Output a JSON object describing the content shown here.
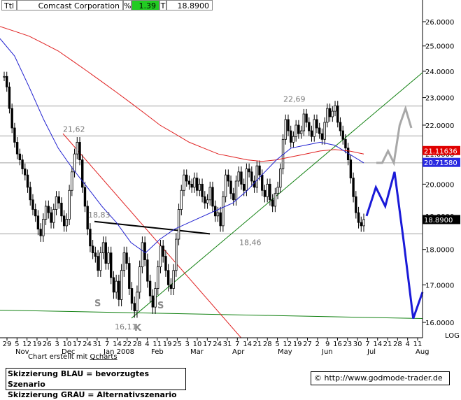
{
  "header": {
    "symbol": "Ttl",
    "name": "Comcast Corporation",
    "pct_label": "%",
    "change": "1.39",
    "t_label": "T",
    "last": "18.8900"
  },
  "credit": {
    "prefix": "Chart erstellt mit ",
    "tool": "Qcharts"
  },
  "legend": {
    "line1": "Skizzierung BLAU = bevorzugtes Szenario",
    "line2": "Skizzierung GRAU = Alternativszenario"
  },
  "footer": {
    "url": "© http://www.godmode-trader.de"
  },
  "colors": {
    "ma_red": "#e02020",
    "ma_blue": "#2020d0",
    "trend_green": "#108010",
    "scenario_blue": "#1a1ad8",
    "scenario_gray": "#a8a8a8",
    "tag_red": "#e00000",
    "tag_blue": "#2a2ae0",
    "tag_black": "#000000",
    "change_bg": "#22cc22"
  },
  "chart_data": {
    "type": "candlestick",
    "ylim": [
      15.7,
      26.6
    ],
    "y_ticks": [
      "16.0000",
      "17.0000",
      "18.0000",
      "19.0000",
      "20.0000",
      "21.0000",
      "22.0000",
      "23.0000",
      "24.0000",
      "25.0000",
      "26.0000"
    ],
    "x_day_labels": [
      "29",
      "5",
      "12",
      "19",
      "26",
      "3",
      "10",
      "17",
      "24",
      "31",
      "7",
      "14",
      "22",
      "28",
      "4",
      "11",
      "19",
      "25",
      "3",
      "10",
      "17",
      "24",
      "31",
      "7",
      "14",
      "21",
      "28",
      "5",
      "12",
      "19",
      "27",
      "2",
      "9",
      "16",
      "23",
      "30",
      "7",
      "14",
      "21",
      "28",
      "4",
      "11"
    ],
    "month_labels": [
      "Nov",
      "Dec",
      "Jan 2008",
      "Feb",
      "Mar",
      "Apr",
      "May",
      "Jun",
      "Jul",
      "Aug"
    ],
    "extra_axis_label": "LOG",
    "price_tags": [
      {
        "value": "21.11636",
        "level": 21.116,
        "color_key": "tag_red"
      },
      {
        "value": "20.71580",
        "level": 20.716,
        "color_key": "tag_blue"
      },
      {
        "value": "18.8900",
        "level": 18.89,
        "color_key": "tag_black"
      }
    ],
    "level_labels": [
      {
        "text": "22,69",
        "level": 22.69
      },
      {
        "text": "21,62",
        "level": 21.62
      },
      {
        "text": "18,83",
        "level": 18.83
      },
      {
        "text": "18,46",
        "level": 18.46
      },
      {
        "text": "16,11",
        "level": 16.11
      }
    ],
    "pattern_labels": [
      "S",
      "S",
      "K"
    ],
    "horizontal_levels": [
      22.69,
      21.62,
      20.7,
      18.46
    ],
    "closes": [
      23.8,
      23.4,
      22.6,
      21.9,
      21.4,
      21.0,
      20.8,
      20.5,
      20.3,
      19.9,
      19.5,
      19.2,
      19.0,
      18.6,
      18.4,
      18.9,
      19.3,
      19.1,
      18.8,
      19.2,
      19.6,
      19.4,
      19.0,
      18.7,
      18.9,
      19.8,
      20.4,
      21.0,
      21.4,
      20.8,
      19.9,
      19.3,
      18.6,
      18.1,
      17.9,
      17.8,
      17.4,
      17.9,
      18.2,
      17.6,
      17.9,
      17.2,
      16.8,
      17.1,
      16.6,
      17.4,
      17.9,
      17.6,
      16.9,
      16.5,
      16.3,
      16.8,
      17.5,
      18.2,
      17.7,
      17.1,
      16.7,
      16.4,
      16.9,
      17.5,
      18.1,
      17.8,
      17.4,
      17.0,
      16.9,
      17.4,
      18.3,
      19.2,
      19.8,
      20.3,
      20.1,
      20.0,
      19.9,
      20.2,
      19.8,
      20.0,
      19.6,
      19.4,
      19.5,
      19.9,
      19.3,
      19.0,
      19.1,
      18.7,
      19.6,
      20.3,
      20.1,
      19.7,
      19.5,
      20.1,
      20.4,
      20.0,
      19.8,
      20.5,
      20.4,
      20.1,
      19.9,
      20.6,
      20.3,
      19.8,
      19.6,
      20.0,
      19.5,
      19.3,
      19.7,
      19.9,
      20.5,
      21.5,
      22.2,
      21.8,
      21.4,
      21.6,
      22.0,
      21.7,
      21.8,
      22.4,
      22.1,
      21.8,
      21.6,
      22.2,
      21.9,
      21.7,
      21.5,
      22.1,
      22.6,
      22.3,
      22.5,
      22.7,
      22.1,
      21.8,
      21.5,
      21.2,
      20.8,
      20.2,
      19.6,
      19.1,
      18.8,
      18.7,
      18.89
    ],
    "ma_red": [
      25.8,
      25.6,
      25.4,
      25.1,
      24.8,
      24.4,
      24.0,
      23.6,
      23.2,
      22.8,
      22.4,
      22.0,
      21.7,
      21.4,
      21.2,
      21.0,
      20.9,
      20.8,
      20.75,
      20.8,
      20.9,
      21.0,
      21.1,
      21.15,
      21.1,
      21.0
    ],
    "ma_blue": [
      25.3,
      24.6,
      23.4,
      22.2,
      21.2,
      20.5,
      19.9,
      19.3,
      18.8,
      18.2,
      17.9,
      18.3,
      18.6,
      18.8,
      19.0,
      19.2,
      19.4,
      19.8,
      20.3,
      20.8,
      21.2,
      21.3,
      21.4,
      21.3,
      21.0,
      20.7
    ],
    "trend_green": [
      16.11,
      23.95
    ],
    "scenario_blue": [
      19.0,
      19.9,
      19.3,
      20.4,
      18.2,
      16.1,
      16.8
    ],
    "scenario_gray": [
      20.7,
      20.7,
      21.1,
      20.7,
      22.0,
      22.6,
      21.9
    ]
  }
}
